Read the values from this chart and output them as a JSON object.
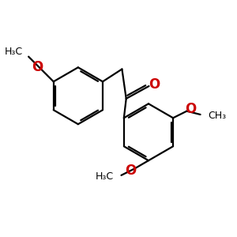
{
  "bg_color": "#ffffff",
  "bond_color": "#000000",
  "o_color": "#cc0000",
  "line_width": 1.6,
  "dbo": 0.09,
  "figsize": [
    3.0,
    3.0
  ],
  "dpi": 100,
  "xlim": [
    0,
    10
  ],
  "ylim": [
    0,
    10
  ]
}
